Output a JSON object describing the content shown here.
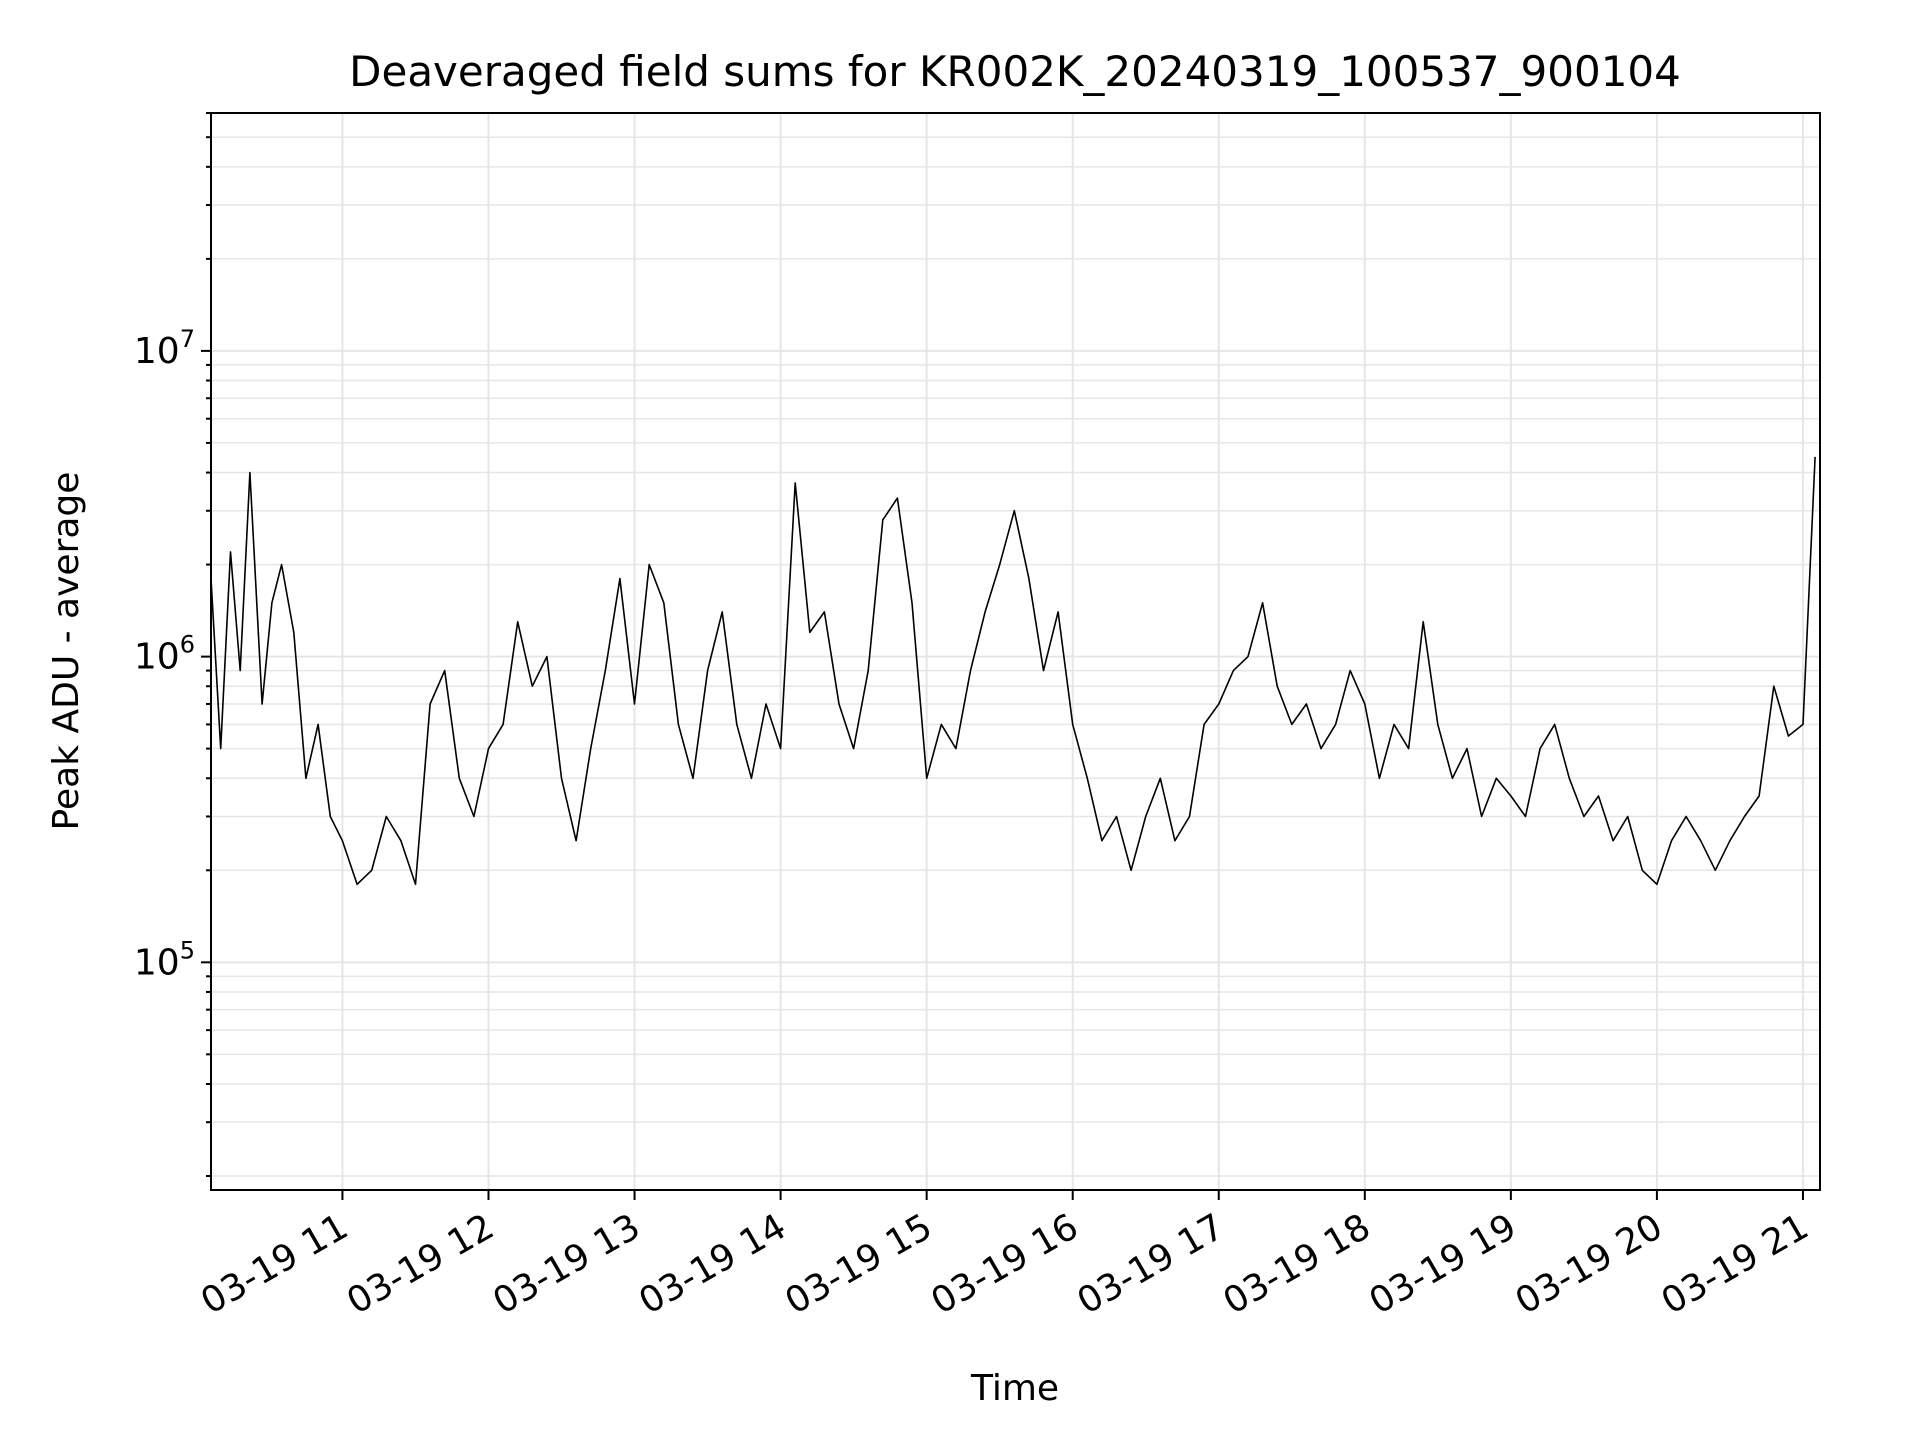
{
  "chart_data": {
    "type": "line",
    "title": "Deaveraged field sums for KR002K_20240319_100537_900104",
    "xlabel": "Time",
    "ylabel": "Peak ADU - average",
    "yscale": "log",
    "ylim": [
      18000,
      60000000
    ],
    "xlim": [
      "2024-03-19T10:06",
      "2024-03-19T21:07"
    ],
    "x_ticks": [
      "03-19 11",
      "03-19 12",
      "03-19 13",
      "03-19 14",
      "03-19 15",
      "03-19 16",
      "03-19 17",
      "03-19 18",
      "03-19 19",
      "03-19 20",
      "03-19 21"
    ],
    "y_ticks": [
      {
        "value": 100000,
        "base": "10",
        "exp": "5"
      },
      {
        "value": 1000000,
        "base": "10",
        "exp": "6"
      },
      {
        "value": 10000000,
        "base": "10",
        "exp": "7"
      }
    ],
    "grid": true,
    "legend": "none",
    "line_color": "#000000",
    "grid_color": "#e6e6e6",
    "series": [
      {
        "x": [
          "2024-03-19T10:06",
          "2024-03-19T10:10",
          "2024-03-19T10:14",
          "2024-03-19T10:18",
          "2024-03-19T10:22",
          "2024-03-19T10:27",
          "2024-03-19T10:31",
          "2024-03-19T10:35",
          "2024-03-19T10:40",
          "2024-03-19T10:45",
          "2024-03-19T10:50",
          "2024-03-19T10:55",
          "2024-03-19T11:00",
          "2024-03-19T11:06",
          "2024-03-19T11:12",
          "2024-03-19T11:18",
          "2024-03-19T11:24",
          "2024-03-19T11:30",
          "2024-03-19T11:36",
          "2024-03-19T11:42",
          "2024-03-19T11:48",
          "2024-03-19T11:54",
          "2024-03-19T12:00",
          "2024-03-19T12:06",
          "2024-03-19T12:12",
          "2024-03-19T12:18",
          "2024-03-19T12:24",
          "2024-03-19T12:30",
          "2024-03-19T12:36",
          "2024-03-19T12:42",
          "2024-03-19T12:48",
          "2024-03-19T12:54",
          "2024-03-19T13:00",
          "2024-03-19T13:06",
          "2024-03-19T13:12",
          "2024-03-19T13:18",
          "2024-03-19T13:24",
          "2024-03-19T13:30",
          "2024-03-19T13:36",
          "2024-03-19T13:42",
          "2024-03-19T13:48",
          "2024-03-19T13:54",
          "2024-03-19T14:00",
          "2024-03-19T14:06",
          "2024-03-19T14:12",
          "2024-03-19T14:18",
          "2024-03-19T14:24",
          "2024-03-19T14:30",
          "2024-03-19T14:36",
          "2024-03-19T14:42",
          "2024-03-19T14:48",
          "2024-03-19T14:54",
          "2024-03-19T15:00",
          "2024-03-19T15:06",
          "2024-03-19T15:12",
          "2024-03-19T15:18",
          "2024-03-19T15:24",
          "2024-03-19T15:30",
          "2024-03-19T15:36",
          "2024-03-19T15:42",
          "2024-03-19T15:48",
          "2024-03-19T15:54",
          "2024-03-19T16:00",
          "2024-03-19T16:06",
          "2024-03-19T16:12",
          "2024-03-19T16:18",
          "2024-03-19T16:24",
          "2024-03-19T16:30",
          "2024-03-19T16:36",
          "2024-03-19T16:42",
          "2024-03-19T16:48",
          "2024-03-19T16:54",
          "2024-03-19T17:00",
          "2024-03-19T17:06",
          "2024-03-19T17:12",
          "2024-03-19T17:18",
          "2024-03-19T17:24",
          "2024-03-19T17:30",
          "2024-03-19T17:36",
          "2024-03-19T17:42",
          "2024-03-19T17:48",
          "2024-03-19T17:54",
          "2024-03-19T18:00",
          "2024-03-19T18:06",
          "2024-03-19T18:12",
          "2024-03-19T18:18",
          "2024-03-19T18:24",
          "2024-03-19T18:30",
          "2024-03-19T18:36",
          "2024-03-19T18:42",
          "2024-03-19T18:48",
          "2024-03-19T18:54",
          "2024-03-19T19:00",
          "2024-03-19T19:06",
          "2024-03-19T19:12",
          "2024-03-19T19:18",
          "2024-03-19T19:24",
          "2024-03-19T19:30",
          "2024-03-19T19:36",
          "2024-03-19T19:42",
          "2024-03-19T19:48",
          "2024-03-19T19:54",
          "2024-03-19T20:00",
          "2024-03-19T20:06",
          "2024-03-19T20:12",
          "2024-03-19T20:18",
          "2024-03-19T20:24",
          "2024-03-19T20:30",
          "2024-03-19T20:36",
          "2024-03-19T20:42",
          "2024-03-19T20:48",
          "2024-03-19T20:54",
          "2024-03-19T21:00",
          "2024-03-19T21:05"
        ],
        "y": [
          1800000,
          500000,
          2200000,
          900000,
          4000000,
          700000,
          1500000,
          2000000,
          1200000,
          400000,
          600000,
          300000,
          250000,
          180000,
          200000,
          300000,
          250000,
          180000,
          700000,
          900000,
          400000,
          300000,
          500000,
          600000,
          1300000,
          800000,
          1000000,
          400000,
          250000,
          500000,
          900000,
          1800000,
          700000,
          2000000,
          1500000,
          600000,
          400000,
          900000,
          1400000,
          600000,
          400000,
          700000,
          500000,
          3700000,
          1200000,
          1400000,
          700000,
          500000,
          900000,
          2800000,
          3300000,
          1500000,
          400000,
          600000,
          500000,
          900000,
          1400000,
          2000000,
          3000000,
          1800000,
          900000,
          1400000,
          600000,
          400000,
          250000,
          300000,
          200000,
          300000,
          400000,
          250000,
          300000,
          600000,
          700000,
          900000,
          1000000,
          1500000,
          800000,
          600000,
          700000,
          500000,
          600000,
          900000,
          700000,
          400000,
          600000,
          500000,
          1300000,
          600000,
          400000,
          500000,
          300000,
          400000,
          350000,
          300000,
          500000,
          600000,
          400000,
          300000,
          350000,
          250000,
          300000,
          200000,
          180000,
          250000,
          300000,
          250000,
          200000,
          250000,
          300000,
          350000,
          800000,
          550000,
          600000,
          4500000
        ]
      }
    ]
  }
}
